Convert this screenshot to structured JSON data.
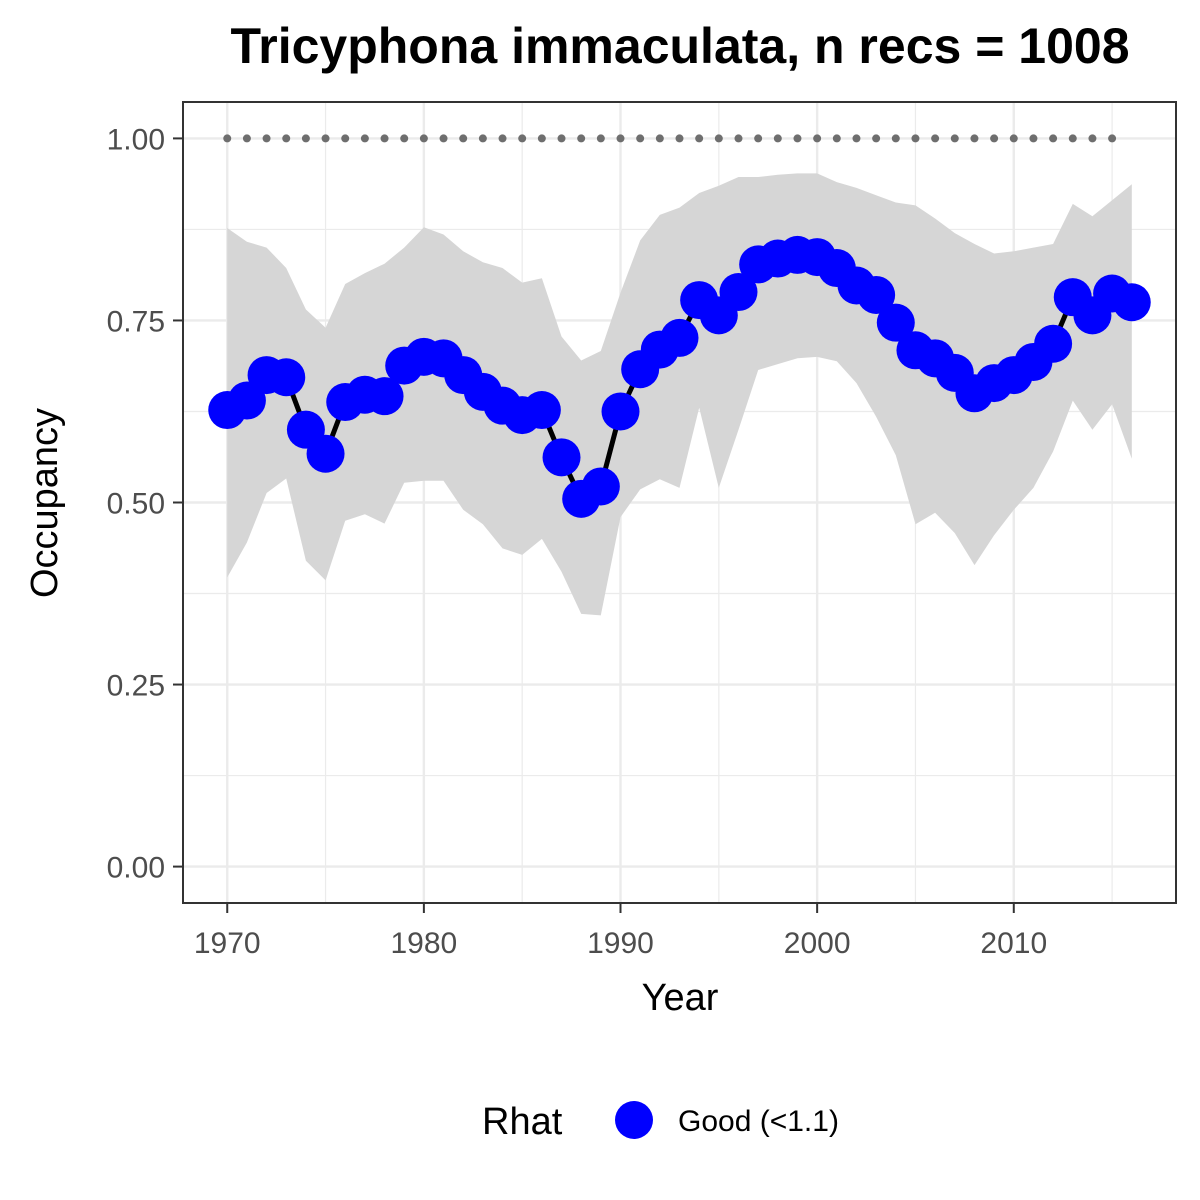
{
  "chart_data": {
    "type": "line",
    "title": "Tricyphona immaculata, n recs = 1008",
    "xlabel": "Year",
    "ylabel": "Occupancy",
    "xlim": [
      1967.75,
      2018.25
    ],
    "ylim": [
      -0.05,
      1.05
    ],
    "x_ticks": [
      1970,
      1980,
      1990,
      2000,
      2010
    ],
    "y_ticks": [
      0.0,
      0.25,
      0.5,
      0.75,
      1.0
    ],
    "y_tick_labels": [
      "0.00",
      "0.25",
      "0.50",
      "0.75",
      "1.00"
    ],
    "grid": true,
    "legend": {
      "title": "Rhat",
      "position": "bottom",
      "entries": [
        {
          "label": "Good (<1.1)",
          "color": "#0000ff"
        }
      ]
    },
    "colors": {
      "points": "#0000ff",
      "line": "#000000",
      "ribbon": "#d6d6d6",
      "reference": "#6e6e6e",
      "grid": "#ebebeb"
    },
    "years": [
      1970,
      1971,
      1972,
      1973,
      1974,
      1975,
      1976,
      1977,
      1978,
      1979,
      1980,
      1981,
      1982,
      1983,
      1984,
      1985,
      1986,
      1987,
      1988,
      1989,
      1990,
      1991,
      1992,
      1993,
      1994,
      1995,
      1996,
      1997,
      1998,
      1999,
      2000,
      2001,
      2002,
      2003,
      2004,
      2005,
      2006,
      2007,
      2008,
      2009,
      2010,
      2011,
      2012,
      2013,
      2014,
      2015,
      2016
    ],
    "occupancy": [
      0.627,
      0.64,
      0.675,
      0.672,
      0.6,
      0.567,
      0.638,
      0.648,
      0.646,
      0.688,
      0.7,
      0.698,
      0.675,
      0.652,
      0.633,
      0.62,
      0.627,
      0.562,
      0.505,
      0.522,
      0.625,
      0.683,
      0.71,
      0.726,
      0.778,
      0.757,
      0.789,
      0.827,
      0.835,
      0.84,
      0.837,
      0.822,
      0.798,
      0.785,
      0.747,
      0.709,
      0.698,
      0.678,
      0.65,
      0.664,
      0.675,
      0.693,
      0.718,
      0.782,
      0.757,
      0.787,
      0.775
    ],
    "lower": [
      0.397,
      0.445,
      0.513,
      0.533,
      0.42,
      0.393,
      0.475,
      0.484,
      0.471,
      0.527,
      0.53,
      0.53,
      0.49,
      0.47,
      0.437,
      0.428,
      0.45,
      0.405,
      0.347,
      0.345,
      0.48,
      0.518,
      0.532,
      0.52,
      0.63,
      0.52,
      0.6,
      0.682,
      0.69,
      0.698,
      0.7,
      0.694,
      0.664,
      0.618,
      0.565,
      0.47,
      0.486,
      0.458,
      0.414,
      0.455,
      0.49,
      0.52,
      0.57,
      0.64,
      0.6,
      0.635,
      0.56
    ],
    "upper": [
      0.877,
      0.858,
      0.85,
      0.822,
      0.765,
      0.74,
      0.8,
      0.815,
      0.828,
      0.85,
      0.878,
      0.868,
      0.845,
      0.83,
      0.822,
      0.802,
      0.808,
      0.728,
      0.695,
      0.708,
      0.788,
      0.86,
      0.895,
      0.905,
      0.925,
      0.935,
      0.947,
      0.947,
      0.95,
      0.952,
      0.952,
      0.94,
      0.932,
      0.922,
      0.912,
      0.908,
      0.89,
      0.87,
      0.855,
      0.842,
      0.845,
      0.85,
      0.855,
      0.91,
      0.893,
      0.915,
      0.937
    ],
    "reference_level": 1.0,
    "reference_years": [
      1970,
      2015
    ]
  }
}
